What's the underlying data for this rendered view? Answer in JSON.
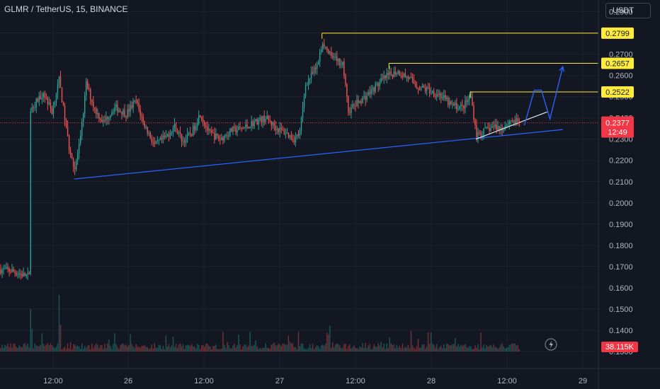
{
  "header": {
    "symbol_title": "GLMR / TetherUS, 15, BINANCE",
    "currency_button": "USDT"
  },
  "chart_data": {
    "type": "candlestick",
    "symbol": "GLMR / TetherUS",
    "interval": "15",
    "exchange": "BINANCE",
    "y_ticks": [
      "0.2900",
      "0.2800",
      "0.2700",
      "0.2600",
      "0.2500",
      "0.2400",
      "0.2300",
      "0.2200",
      "0.2100",
      "0.2000",
      "0.1900",
      "0.1800",
      "0.1700",
      "0.1600",
      "0.1500",
      "0.1400",
      "0.1300"
    ],
    "ylim": [
      0.129,
      0.2955
    ],
    "x_ticks": [
      "12:00",
      "26",
      "12:00",
      "27",
      "12:00",
      "28",
      "12:00",
      "29"
    ],
    "price_path": [
      {
        "t": 0,
        "p": 0.1685
      },
      {
        "t": 8,
        "p": 0.168
      },
      {
        "t": 16,
        "p": 0.166
      },
      {
        "t": 20,
        "p": 0.1655
      },
      {
        "t": 22,
        "p": 0.245
      },
      {
        "t": 30,
        "p": 0.252
      },
      {
        "t": 36,
        "p": 0.243
      },
      {
        "t": 41,
        "p": 0.258
      },
      {
        "t": 48,
        "p": 0.226
      },
      {
        "t": 52,
        "p": 0.216
      },
      {
        "t": 56,
        "p": 0.23
      },
      {
        "t": 60,
        "p": 0.256
      },
      {
        "t": 66,
        "p": 0.244
      },
      {
        "t": 72,
        "p": 0.238
      },
      {
        "t": 80,
        "p": 0.245
      },
      {
        "t": 88,
        "p": 0.242
      },
      {
        "t": 95,
        "p": 0.248
      },
      {
        "t": 100,
        "p": 0.238
      },
      {
        "t": 108,
        "p": 0.227
      },
      {
        "t": 116,
        "p": 0.231
      },
      {
        "t": 122,
        "p": 0.236
      },
      {
        "t": 128,
        "p": 0.229
      },
      {
        "t": 134,
        "p": 0.233
      },
      {
        "t": 140,
        "p": 0.242
      },
      {
        "t": 146,
        "p": 0.233
      },
      {
        "t": 154,
        "p": 0.23
      },
      {
        "t": 162,
        "p": 0.234
      },
      {
        "t": 170,
        "p": 0.235
      },
      {
        "t": 178,
        "p": 0.238
      },
      {
        "t": 186,
        "p": 0.24
      },
      {
        "t": 194,
        "p": 0.235
      },
      {
        "t": 200,
        "p": 0.233
      },
      {
        "t": 206,
        "p": 0.23
      },
      {
        "t": 210,
        "p": 0.233
      },
      {
        "t": 214,
        "p": 0.256
      },
      {
        "t": 222,
        "p": 0.264
      },
      {
        "t": 226,
        "p": 0.276
      },
      {
        "t": 232,
        "p": 0.268
      },
      {
        "t": 240,
        "p": 0.266
      },
      {
        "t": 244,
        "p": 0.243
      },
      {
        "t": 250,
        "p": 0.247
      },
      {
        "t": 256,
        "p": 0.25
      },
      {
        "t": 262,
        "p": 0.254
      },
      {
        "t": 270,
        "p": 0.259
      },
      {
        "t": 278,
        "p": 0.262
      },
      {
        "t": 286,
        "p": 0.259
      },
      {
        "t": 292,
        "p": 0.255
      },
      {
        "t": 300,
        "p": 0.253
      },
      {
        "t": 308,
        "p": 0.251
      },
      {
        "t": 316,
        "p": 0.246
      },
      {
        "t": 324,
        "p": 0.245
      },
      {
        "t": 330,
        "p": 0.25
      },
      {
        "t": 334,
        "p": 0.232
      },
      {
        "t": 340,
        "p": 0.234
      },
      {
        "t": 346,
        "p": 0.236
      },
      {
        "t": 352,
        "p": 0.235
      },
      {
        "t": 358,
        "p": 0.239
      },
      {
        "t": 364,
        "p": 0.2377
      }
    ],
    "annotations": {
      "horizontal_levels": [
        {
          "value": 0.2799,
          "label": "0.2799",
          "from_t": 226
        },
        {
          "value": 0.2657,
          "label": "0.2657",
          "from_t": 273
        },
        {
          "value": 0.2522,
          "label": "0.2522",
          "from_t": 330
        }
      ],
      "trendline_blue": [
        {
          "t": 52,
          "p": 0.2112
        },
        {
          "t": 395,
          "p": 0.2345
        }
      ],
      "trendline_white": [
        {
          "t": 334,
          "p": 0.23
        },
        {
          "t": 384,
          "p": 0.2428
        }
      ],
      "projection_path": [
        {
          "t": 368,
          "p": 0.2365
        },
        {
          "t": 375,
          "p": 0.253
        },
        {
          "t": 380,
          "p": 0.253
        },
        {
          "t": 386,
          "p": 0.2395
        },
        {
          "t": 395,
          "p": 0.264
        }
      ]
    },
    "current_price": {
      "label": "0.2377",
      "value": 0.2377,
      "countdown": "12:49"
    },
    "volume": {
      "label": "38.115K"
    },
    "colors": {
      "up": "#26a69a",
      "down": "#ef5350",
      "background": "#131722",
      "level_line": "#ffeb3b",
      "level_tag": "#ffeb3b",
      "trend_blue": "#2962ff",
      "trend_white": "#e0e3eb",
      "projection": "#2962ff",
      "price_tag": "#f23645",
      "grid": "#1e222d",
      "axis_text": "#b2b5be"
    },
    "grid": true
  }
}
